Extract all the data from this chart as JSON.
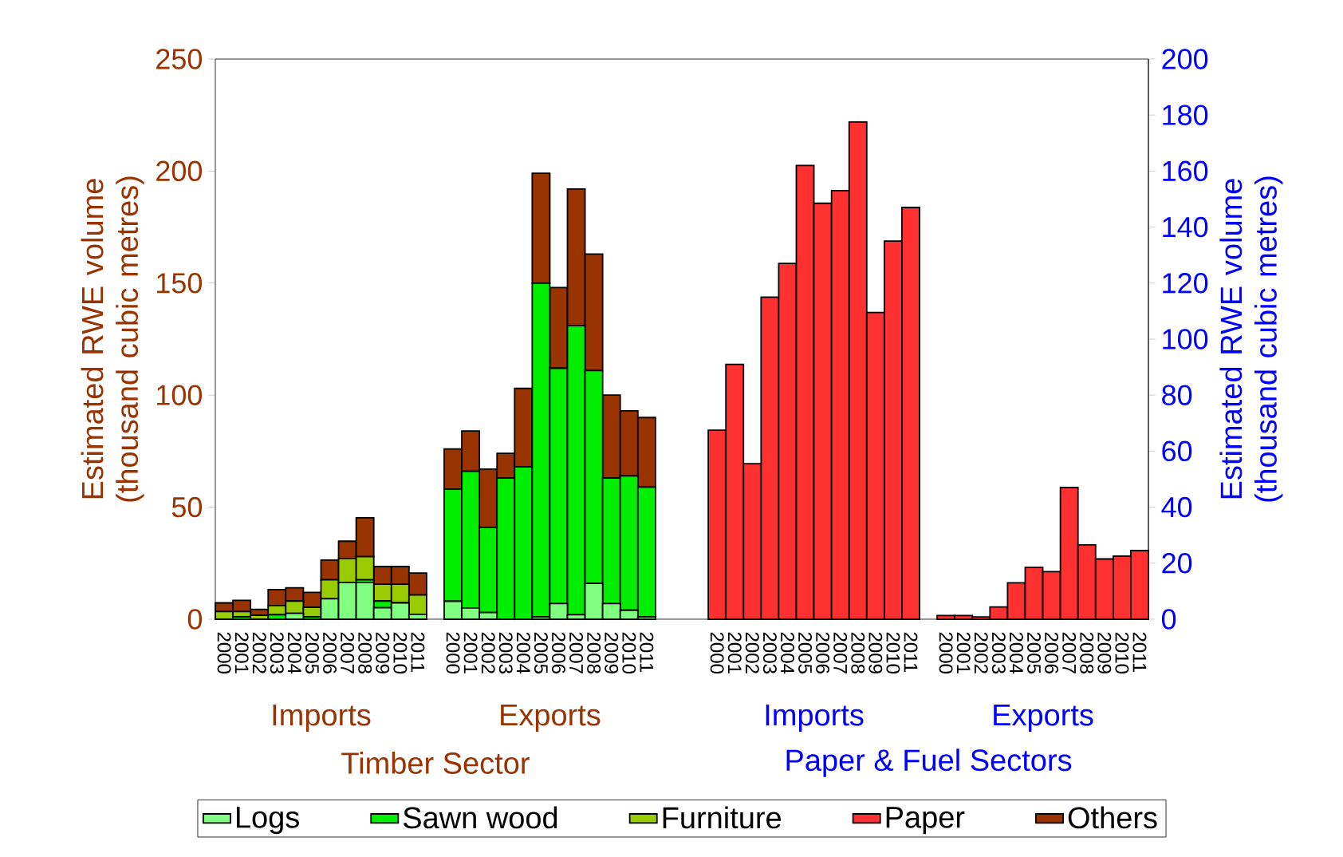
{
  "chart_data": {
    "type": "bar",
    "stacked": true,
    "categories": [
      "2000",
      "2001",
      "2002",
      "2003",
      "2004",
      "2005",
      "2006",
      "2007",
      "2008",
      "2009",
      "2010",
      "2011",
      null,
      "2000",
      "2001",
      "2002",
      "2003",
      "2004",
      "2005",
      "2006",
      "2007",
      "2008",
      "2009",
      "2010",
      "2011",
      null,
      null,
      null,
      "2000",
      "2001",
      "2002",
      "2003",
      "2004",
      "2005",
      "2006",
      "2007",
      "2008",
      "2009",
      "2010",
      "2011",
      null,
      "2000",
      "2001",
      "2002",
      "2003",
      "2004",
      "2005",
      "2006",
      "2007",
      "2008",
      "2009",
      "2010",
      "2011"
    ],
    "series": [
      {
        "name": "Logs",
        "color": "#80ff80",
        "values": [
          0,
          0,
          0,
          0,
          2.6,
          0,
          9.1,
          16.4,
          16.4,
          5.1,
          7.3,
          2.2,
          null,
          8,
          5,
          3,
          0,
          0,
          1,
          7,
          2,
          16,
          7,
          4,
          1,
          null,
          null,
          null,
          null,
          null,
          null,
          null,
          null,
          null,
          null,
          null,
          null,
          null,
          null,
          null,
          null,
          null,
          null,
          null,
          null,
          null,
          null,
          null,
          null,
          null,
          null,
          null,
          null
        ]
      },
      {
        "name": "Sawn wood",
        "color": "#00ee00",
        "values": [
          0,
          1,
          0,
          2,
          0,
          1,
          0,
          0,
          1.2,
          3,
          0,
          0,
          null,
          50,
          61,
          38,
          63,
          68,
          149,
          105,
          129,
          95,
          56,
          60,
          58,
          null,
          null,
          null,
          null,
          null,
          null,
          null,
          null,
          null,
          null,
          null,
          null,
          null,
          null,
          null,
          null,
          null,
          null,
          null,
          null,
          null,
          null,
          null,
          null,
          null,
          null,
          null,
          null
        ]
      },
      {
        "name": "Furniture",
        "color": "#99cc00",
        "values": [
          3.4,
          2.4,
          1.7,
          4.1,
          5.5,
          4.3,
          8.5,
          10.7,
          10.3,
          7.5,
          8.3,
          8.6,
          null,
          0,
          0,
          0,
          0,
          0,
          0,
          0,
          0,
          0,
          0,
          0,
          0,
          null,
          null,
          null,
          null,
          null,
          null,
          null,
          null,
          null,
          null,
          null,
          null,
          null,
          null,
          null,
          null,
          null,
          null,
          null,
          null,
          null,
          null,
          null,
          null,
          null,
          null,
          null,
          null
        ]
      },
      {
        "name": "Paper",
        "color": "#ff3030",
        "axis": "y2",
        "values": [
          null,
          null,
          null,
          null,
          null,
          null,
          null,
          null,
          null,
          null,
          null,
          null,
          null,
          null,
          null,
          null,
          null,
          null,
          null,
          null,
          null,
          null,
          null,
          null,
          null,
          null,
          null,
          null,
          67.5,
          91,
          55.5,
          115,
          127,
          162,
          148.5,
          153,
          177.5,
          109.5,
          135,
          147,
          null,
          1.3,
          1.3,
          0.8,
          4.4,
          13,
          18.5,
          17,
          47,
          26.5,
          21.5,
          22.5,
          24.5
        ]
      },
      {
        "name": "Others",
        "color": "#993300",
        "values": [
          3.9,
          5,
          2.7,
          7.1,
          5.9,
          6.7,
          8.8,
          7.7,
          17.4,
          7.9,
          7.9,
          9.8,
          null,
          18,
          18,
          26,
          11,
          35,
          49,
          36,
          61,
          52,
          37,
          29,
          31,
          null,
          null,
          null,
          null,
          null,
          null,
          null,
          null,
          null,
          null,
          null,
          null,
          null,
          null,
          null,
          null,
          null,
          null,
          null,
          null,
          null,
          null,
          null,
          null,
          null,
          null,
          null,
          null
        ]
      }
    ],
    "ylabel": "Estimated RWE volume (thousand cubic metres)",
    "y2label": "Estimated RWE volume (thousand cubic metres)",
    "ylim": [
      0,
      250
    ],
    "yticks": [
      0,
      50,
      100,
      150,
      200,
      250
    ],
    "y2lim": [
      0,
      200
    ],
    "y2ticks": [
      0,
      20,
      40,
      60,
      80,
      100,
      120,
      140,
      160,
      180,
      200
    ],
    "annotations": [
      "Imports",
      "Exports",
      "Timber Sector",
      "Imports",
      "Exports",
      "Paper & Fuel Sectors"
    ],
    "legend": "bottom"
  }
}
